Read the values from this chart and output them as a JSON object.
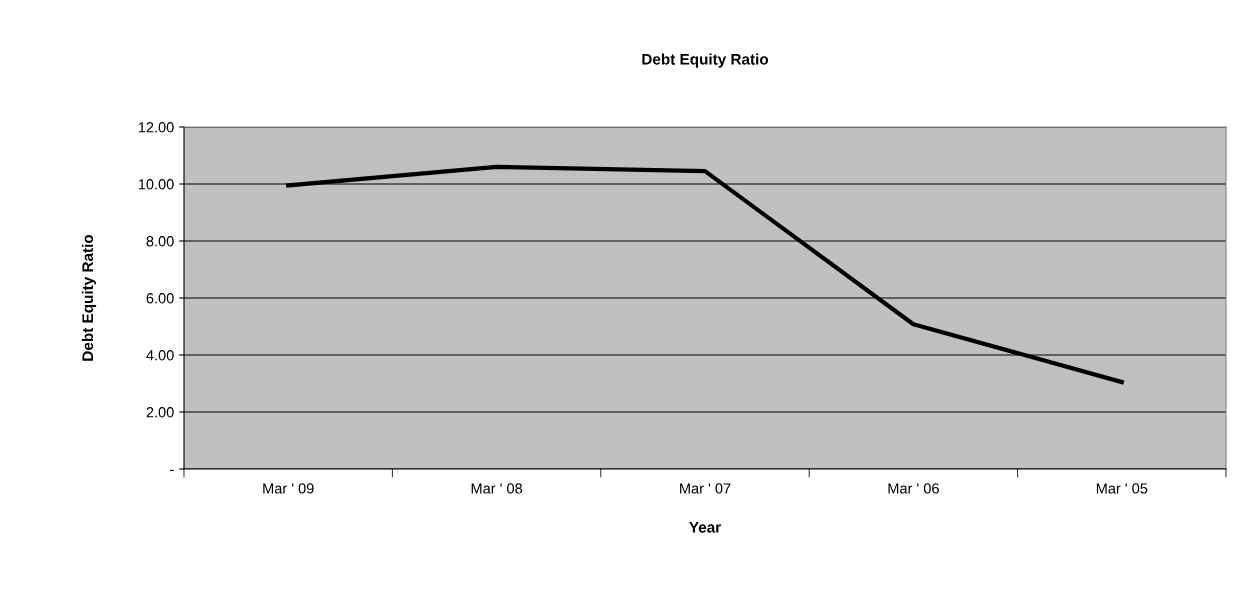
{
  "chart_data": {
    "type": "line",
    "title": "Debt Equity Ratio",
    "xlabel": "Year",
    "ylabel": "Debt Equity Ratio",
    "categories": [
      "Mar ' 09",
      "Mar ' 08",
      "Mar ' 07",
      "Mar ' 06",
      "Mar ' 05"
    ],
    "series": [
      {
        "color": "#000000",
        "values": [
          9.95,
          10.6,
          10.45,
          5.08,
          3.05
        ]
      }
    ],
    "ylim": [
      0,
      12
    ],
    "yticks": [
      {
        "value": 0,
        "label": "-"
      },
      {
        "value": 2,
        "label": "2.00"
      },
      {
        "value": 4,
        "label": "4.00"
      },
      {
        "value": 6,
        "label": "6.00"
      },
      {
        "value": 8,
        "label": "8.00"
      },
      {
        "value": 10,
        "label": "10.00"
      },
      {
        "value": 12,
        "label": "12.00"
      }
    ],
    "grid": "y",
    "marker": "none",
    "line_style": "solid"
  }
}
